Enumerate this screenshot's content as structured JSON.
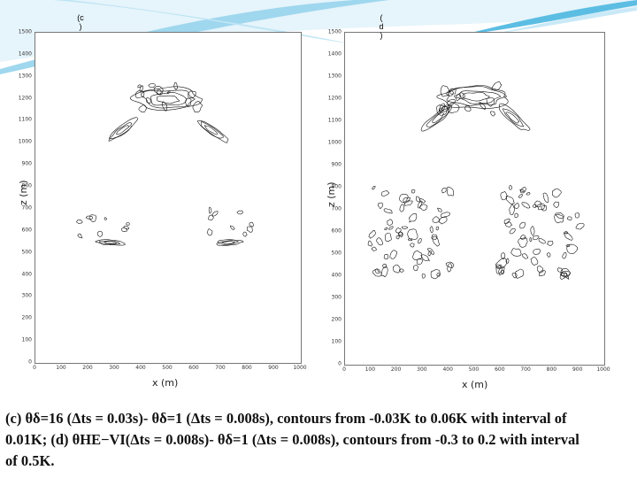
{
  "panels": [
    {
      "id": "c",
      "label_chars": [
        "(c",
        ")"
      ],
      "ylabel": "z (m)",
      "xlabel": "x (m)",
      "yticks": [
        "1500",
        "1400",
        "1300",
        "1200",
        "1100",
        "1000",
        "900",
        "800",
        "700",
        "600",
        "500",
        "400",
        "300",
        "200",
        "100",
        "0"
      ],
      "xticks": [
        "0",
        "100",
        "200",
        "300",
        "400",
        "500",
        "600",
        "700",
        "800",
        "900",
        "1000"
      ]
    },
    {
      "id": "d",
      "label_chars": [
        "(",
        "d",
        ")"
      ],
      "ylabel": "z (m)",
      "xlabel": "x (m)",
      "yticks": [
        "1500",
        "1400",
        "1300",
        "1200",
        "1100",
        "1000",
        "900",
        "800",
        "700",
        "600",
        "500",
        "400",
        "300",
        "200",
        "100",
        "0"
      ],
      "xticks": [
        "0",
        "100",
        "200",
        "300",
        "400",
        "500",
        "600",
        "700",
        "800",
        "900",
        "1000"
      ]
    }
  ],
  "caption": {
    "line1": "(c) θδ=16 (Δts = 0.03s)- θδ=1 (Δts = 0.008s), contours from -0.03K to 0.06K with interval of",
    "line2": "0.01K; (d) θHE−VI(Δts = 0.008s)- θδ=1 (Δts = 0.008s), contours from -0.3 to 0.2 with interval",
    "line3": "of 0.5K."
  },
  "colors": {
    "banner_light": "#cfeaf6",
    "banner_accent": "#29a9d6",
    "contour": "#111111"
  }
}
